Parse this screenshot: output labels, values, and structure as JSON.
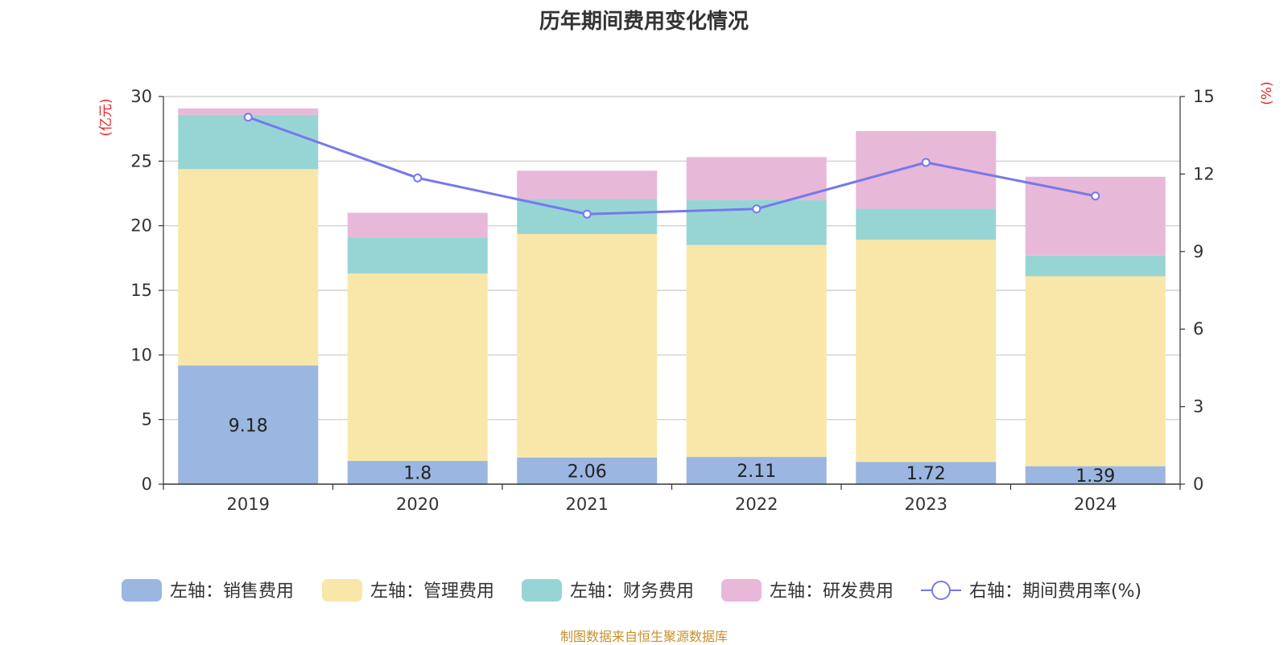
{
  "chart_data": {
    "type": "bar",
    "title": "历年期间费用变化情况",
    "categories": [
      "2019",
      "2020",
      "2021",
      "2022",
      "2023",
      "2024"
    ],
    "series": [
      {
        "name": "左轴：销售费用",
        "axis": "left",
        "kind": "bar",
        "color": "#9bb6e0",
        "values": [
          9.18,
          1.8,
          2.06,
          2.11,
          1.72,
          1.39
        ],
        "labels": [
          "9.18",
          "1.8",
          "2.06",
          "2.11",
          "1.72",
          "1.39"
        ]
      },
      {
        "name": "左轴：管理费用",
        "axis": "left",
        "kind": "bar",
        "color": "#f8e7a8",
        "values": [
          15.2,
          14.5,
          17.3,
          16.4,
          17.2,
          14.7
        ]
      },
      {
        "name": "左轴：财务费用",
        "axis": "left",
        "kind": "bar",
        "color": "#97d5d5",
        "values": [
          4.2,
          2.8,
          2.7,
          3.5,
          2.4,
          1.6
        ]
      },
      {
        "name": "左轴：研发费用",
        "axis": "left",
        "kind": "bar",
        "color": "#e8b8d9",
        "values": [
          0.5,
          1.9,
          2.2,
          3.3,
          6.0,
          6.1
        ]
      },
      {
        "name": "右轴：期间费用率(%)",
        "axis": "right",
        "kind": "line",
        "color": "#7678ed",
        "values": [
          14.2,
          11.85,
          10.45,
          10.65,
          12.45,
          11.15
        ]
      }
    ],
    "left_axis": {
      "label": "(亿元)",
      "min": 0,
      "max": 30,
      "ticks": [
        0,
        5,
        10,
        15,
        20,
        25,
        30
      ]
    },
    "right_axis": {
      "label": "(%)",
      "min": 0,
      "max": 15,
      "ticks": [
        0,
        3,
        6,
        9,
        12,
        15
      ]
    },
    "grid": true,
    "legend_position": "bottom",
    "source": "制图数据来自恒生聚源数据库"
  }
}
